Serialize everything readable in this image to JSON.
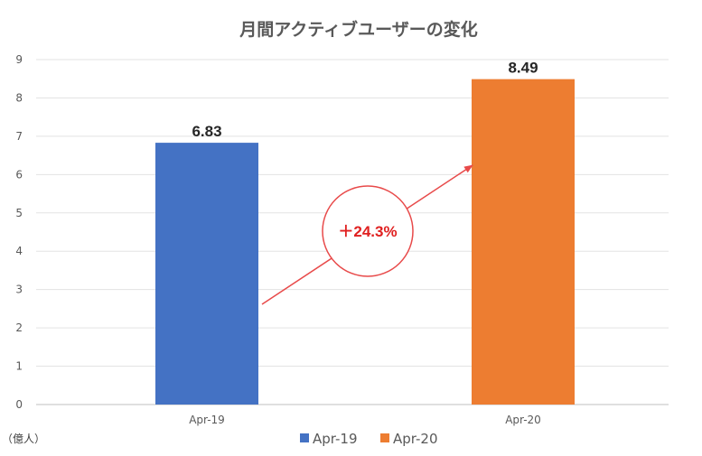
{
  "chart_data": {
    "type": "bar",
    "title": "月間アクティブユーザーの変化",
    "unit_label": "（億人）",
    "categories": [
      "Apr-19",
      "Apr-20"
    ],
    "values": [
      6.83,
      8.49
    ],
    "data_labels": [
      "6.83",
      "8.49"
    ],
    "colors": [
      "#4472C4",
      "#ED7D31"
    ],
    "ylim": [
      0,
      9
    ],
    "yticks": [
      "0",
      "1",
      "2",
      "3",
      "4",
      "5",
      "6",
      "7",
      "8",
      "9"
    ],
    "grid": true,
    "legend": {
      "position": "bottom",
      "entries": [
        "Apr-19",
        "Apr-20"
      ]
    },
    "annotation": {
      "text": "＋24.3%",
      "color": "#E02020"
    }
  }
}
